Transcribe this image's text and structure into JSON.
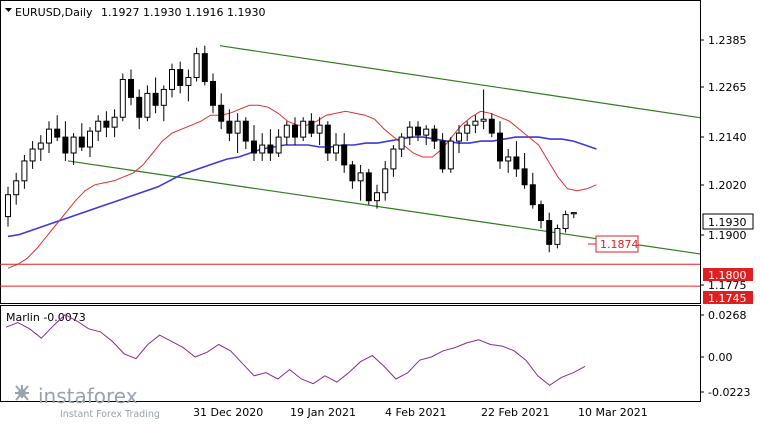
{
  "header": {
    "symbol": "EURUSD,Daily",
    "ohlc": "1.1927 1.1930 1.1916 1.1930"
  },
  "price_axis": {
    "ticks": [
      "1.2385",
      "1.2265",
      "1.2140",
      "1.2020",
      "1.1900",
      "1.1775"
    ],
    "current_price": "1.1930",
    "levels": [
      {
        "label": "1.1800",
        "value": 1.18
      },
      {
        "label": "1.1745",
        "value": 1.1745
      }
    ],
    "annotation": "1.1874"
  },
  "indicator": {
    "label": "Marlin -0.0073",
    "ticks": [
      "0.0268",
      "0.00",
      "-0.0223"
    ]
  },
  "time_axis": {
    "labels": [
      "31 Dec 2020",
      "19 Jan 2021",
      "4 Feb 2021",
      "22 Feb 2021",
      "10 Mar 2021"
    ]
  },
  "watermark": {
    "brand": "instaforex",
    "tagline": "Instant Forex Trading"
  },
  "colors": {
    "channel": "#2e7d1e",
    "ma_fast": "#e03030",
    "ma_slow": "#3a3adc",
    "marlin": "#8a2a9a",
    "level": "#e02020"
  },
  "chart_data": {
    "type": "candlestick",
    "title": "EURUSD,Daily",
    "ylim": [
      1.1705,
      1.246
    ],
    "candles": [
      [
        1.192,
        1.1995,
        1.1895,
        1.1975
      ],
      [
        1.1975,
        1.203,
        1.195,
        1.201
      ],
      [
        1.201,
        1.2075,
        1.199,
        1.206
      ],
      [
        1.206,
        1.211,
        1.204,
        1.209
      ],
      [
        1.209,
        1.2125,
        1.206,
        1.2105
      ],
      [
        1.2105,
        1.216,
        1.208,
        1.214
      ],
      [
        1.214,
        1.2175,
        1.211,
        1.212
      ],
      [
        1.212,
        1.216,
        1.206,
        1.208
      ],
      [
        1.208,
        1.213,
        1.205,
        1.212
      ],
      [
        1.212,
        1.2155,
        1.2085,
        1.2095
      ],
      [
        1.2095,
        1.2145,
        1.207,
        1.2135
      ],
      [
        1.2135,
        1.2175,
        1.211,
        1.216
      ],
      [
        1.216,
        1.2185,
        1.212,
        1.2145
      ],
      [
        1.2145,
        1.219,
        1.212,
        1.217
      ],
      [
        1.217,
        1.228,
        1.216,
        1.2265
      ],
      [
        1.2265,
        1.229,
        1.22,
        1.222
      ],
      [
        1.222,
        1.224,
        1.214,
        1.217
      ],
      [
        1.217,
        1.225,
        1.216,
        1.223
      ],
      [
        1.223,
        1.227,
        1.218,
        1.22
      ],
      [
        1.22,
        1.225,
        1.216,
        1.224
      ],
      [
        1.224,
        1.2305,
        1.222,
        1.229
      ],
      [
        1.229,
        1.231,
        1.223,
        1.225
      ],
      [
        1.225,
        1.229,
        1.221,
        1.227
      ],
      [
        1.227,
        1.2345,
        1.226,
        1.233
      ],
      [
        1.233,
        1.235,
        1.225,
        1.226
      ],
      [
        1.226,
        1.228,
        1.218,
        1.22
      ],
      [
        1.22,
        1.223,
        1.214,
        1.216
      ],
      [
        1.216,
        1.219,
        1.211,
        1.213
      ],
      [
        1.213,
        1.218,
        1.208,
        1.216
      ],
      [
        1.216,
        1.217,
        1.209,
        1.211
      ],
      [
        1.211,
        1.215,
        1.206,
        1.208
      ],
      [
        1.208,
        1.213,
        1.206,
        1.21
      ],
      [
        1.21,
        1.214,
        1.206,
        1.208
      ],
      [
        1.208,
        1.214,
        1.207,
        1.212
      ],
      [
        1.212,
        1.216,
        1.21,
        1.215
      ],
      [
        1.215,
        1.217,
        1.21,
        1.212
      ],
      [
        1.212,
        1.217,
        1.211,
        1.216
      ],
      [
        1.216,
        1.218,
        1.212,
        1.213
      ],
      [
        1.213,
        1.217,
        1.21,
        1.215
      ],
      [
        1.215,
        1.216,
        1.206,
        1.208
      ],
      [
        1.208,
        1.213,
        1.206,
        1.21
      ],
      [
        1.21,
        1.213,
        1.203,
        1.205
      ],
      [
        1.205,
        1.206,
        1.199,
        1.201
      ],
      [
        1.201,
        1.205,
        1.196,
        1.203
      ],
      [
        1.203,
        1.204,
        1.195,
        1.196
      ],
      [
        1.196,
        1.2,
        1.194,
        1.198
      ],
      [
        1.198,
        1.206,
        1.196,
        1.204
      ],
      [
        1.204,
        1.21,
        1.202,
        1.209
      ],
      [
        1.209,
        1.213,
        1.207,
        1.212
      ],
      [
        1.212,
        1.216,
        1.21,
        1.2145
      ],
      [
        1.2145,
        1.216,
        1.211,
        1.2125
      ],
      [
        1.2125,
        1.215,
        1.21,
        1.214
      ],
      [
        1.214,
        1.215,
        1.209,
        1.211
      ],
      [
        1.211,
        1.213,
        1.203,
        1.204
      ],
      [
        1.204,
        1.212,
        1.203,
        1.211
      ],
      [
        1.211,
        1.215,
        1.208,
        1.213
      ],
      [
        1.213,
        1.216,
        1.211,
        1.215
      ],
      [
        1.215,
        1.2175,
        1.213,
        1.216
      ],
      [
        1.216,
        1.224,
        1.214,
        1.2165
      ],
      [
        1.2165,
        1.218,
        1.212,
        1.213
      ],
      [
        1.213,
        1.216,
        1.204,
        1.206
      ],
      [
        1.206,
        1.209,
        1.203,
        1.207
      ],
      [
        1.207,
        1.211,
        1.202,
        1.204
      ],
      [
        1.204,
        1.208,
        1.199,
        1.2
      ],
      [
        1.2,
        1.203,
        1.194,
        1.195
      ],
      [
        1.195,
        1.196,
        1.189,
        1.191
      ],
      [
        1.191,
        1.193,
        1.183,
        1.185
      ],
      [
        1.185,
        1.19,
        1.184,
        1.189
      ],
      [
        1.189,
        1.1935,
        1.188,
        1.1925
      ],
      [
        1.1927,
        1.193,
        1.1916,
        1.193
      ]
    ],
    "ma_fast": [
      1.179,
      1.18,
      1.1815,
      1.184,
      1.187,
      1.19,
      1.193,
      1.196,
      1.1985,
      1.2,
      1.2005,
      1.201,
      1.202,
      1.203,
      1.205,
      1.208,
      1.211,
      1.213,
      1.214,
      1.215,
      1.216,
      1.2175,
      1.2175,
      1.218,
      1.219,
      1.22,
      1.22,
      1.2195,
      1.218,
      1.216,
      1.215,
      1.215,
      1.216,
      1.2175,
      1.218,
      1.2185,
      1.218,
      1.2175,
      1.2165,
      1.214,
      1.212,
      1.21,
      1.208,
      1.207,
      1.207,
      1.209,
      1.212,
      1.215,
      1.217,
      1.2185,
      1.218,
      1.217,
      1.216,
      1.214,
      1.212,
      1.21,
      1.206,
      1.202,
      1.199,
      1.1985,
      1.199,
      1.2
    ],
    "ma_slow": [
      1.187,
      1.1875,
      1.1885,
      1.1895,
      1.1905,
      1.1915,
      1.1925,
      1.1935,
      1.1945,
      1.1955,
      1.1965,
      1.1975,
      1.1985,
      1.1995,
      1.201,
      1.2025,
      1.2035,
      1.2045,
      1.2055,
      1.2065,
      1.207,
      1.208,
      1.209,
      1.2095,
      1.21,
      1.21,
      1.21,
      1.2095,
      1.2095,
      1.21,
      1.21,
      1.2105,
      1.2105,
      1.211,
      1.2115,
      1.212,
      1.212,
      1.2115,
      1.211,
      1.2105,
      1.2105,
      1.211,
      1.211,
      1.2115,
      1.212,
      1.212,
      1.212,
      1.2115,
      1.2115,
      1.211,
      1.21,
      1.209
    ],
    "channel_upper": {
      "from": 1.235,
      "to": 1.215
    },
    "channel_lower": {
      "from": 1.206,
      "to": 1.183
    },
    "levels": [
      1.18,
      1.1745
    ],
    "annotation_price": 1.1874,
    "marlin": [
      0.019,
      0.022,
      0.018,
      0.012,
      0.02,
      0.027,
      0.023,
      0.018,
      0.016,
      0.01,
      0.002,
      -0.001,
      0.008,
      0.014,
      0.01,
      0.006,
      0.0,
      0.003,
      0.008,
      0.004,
      -0.004,
      -0.012,
      -0.01,
      -0.014,
      -0.008,
      -0.014,
      -0.017,
      -0.012,
      -0.016,
      -0.01,
      -0.003,
      0.001,
      -0.006,
      -0.014,
      -0.01,
      -0.002,
      0.0,
      0.004,
      0.006,
      0.009,
      0.011,
      0.008,
      0.007,
      0.004,
      -0.002,
      -0.012,
      -0.018,
      -0.013,
      -0.01,
      -0.006
    ],
    "marlin_range": [
      -0.0223,
      0.0268
    ]
  }
}
